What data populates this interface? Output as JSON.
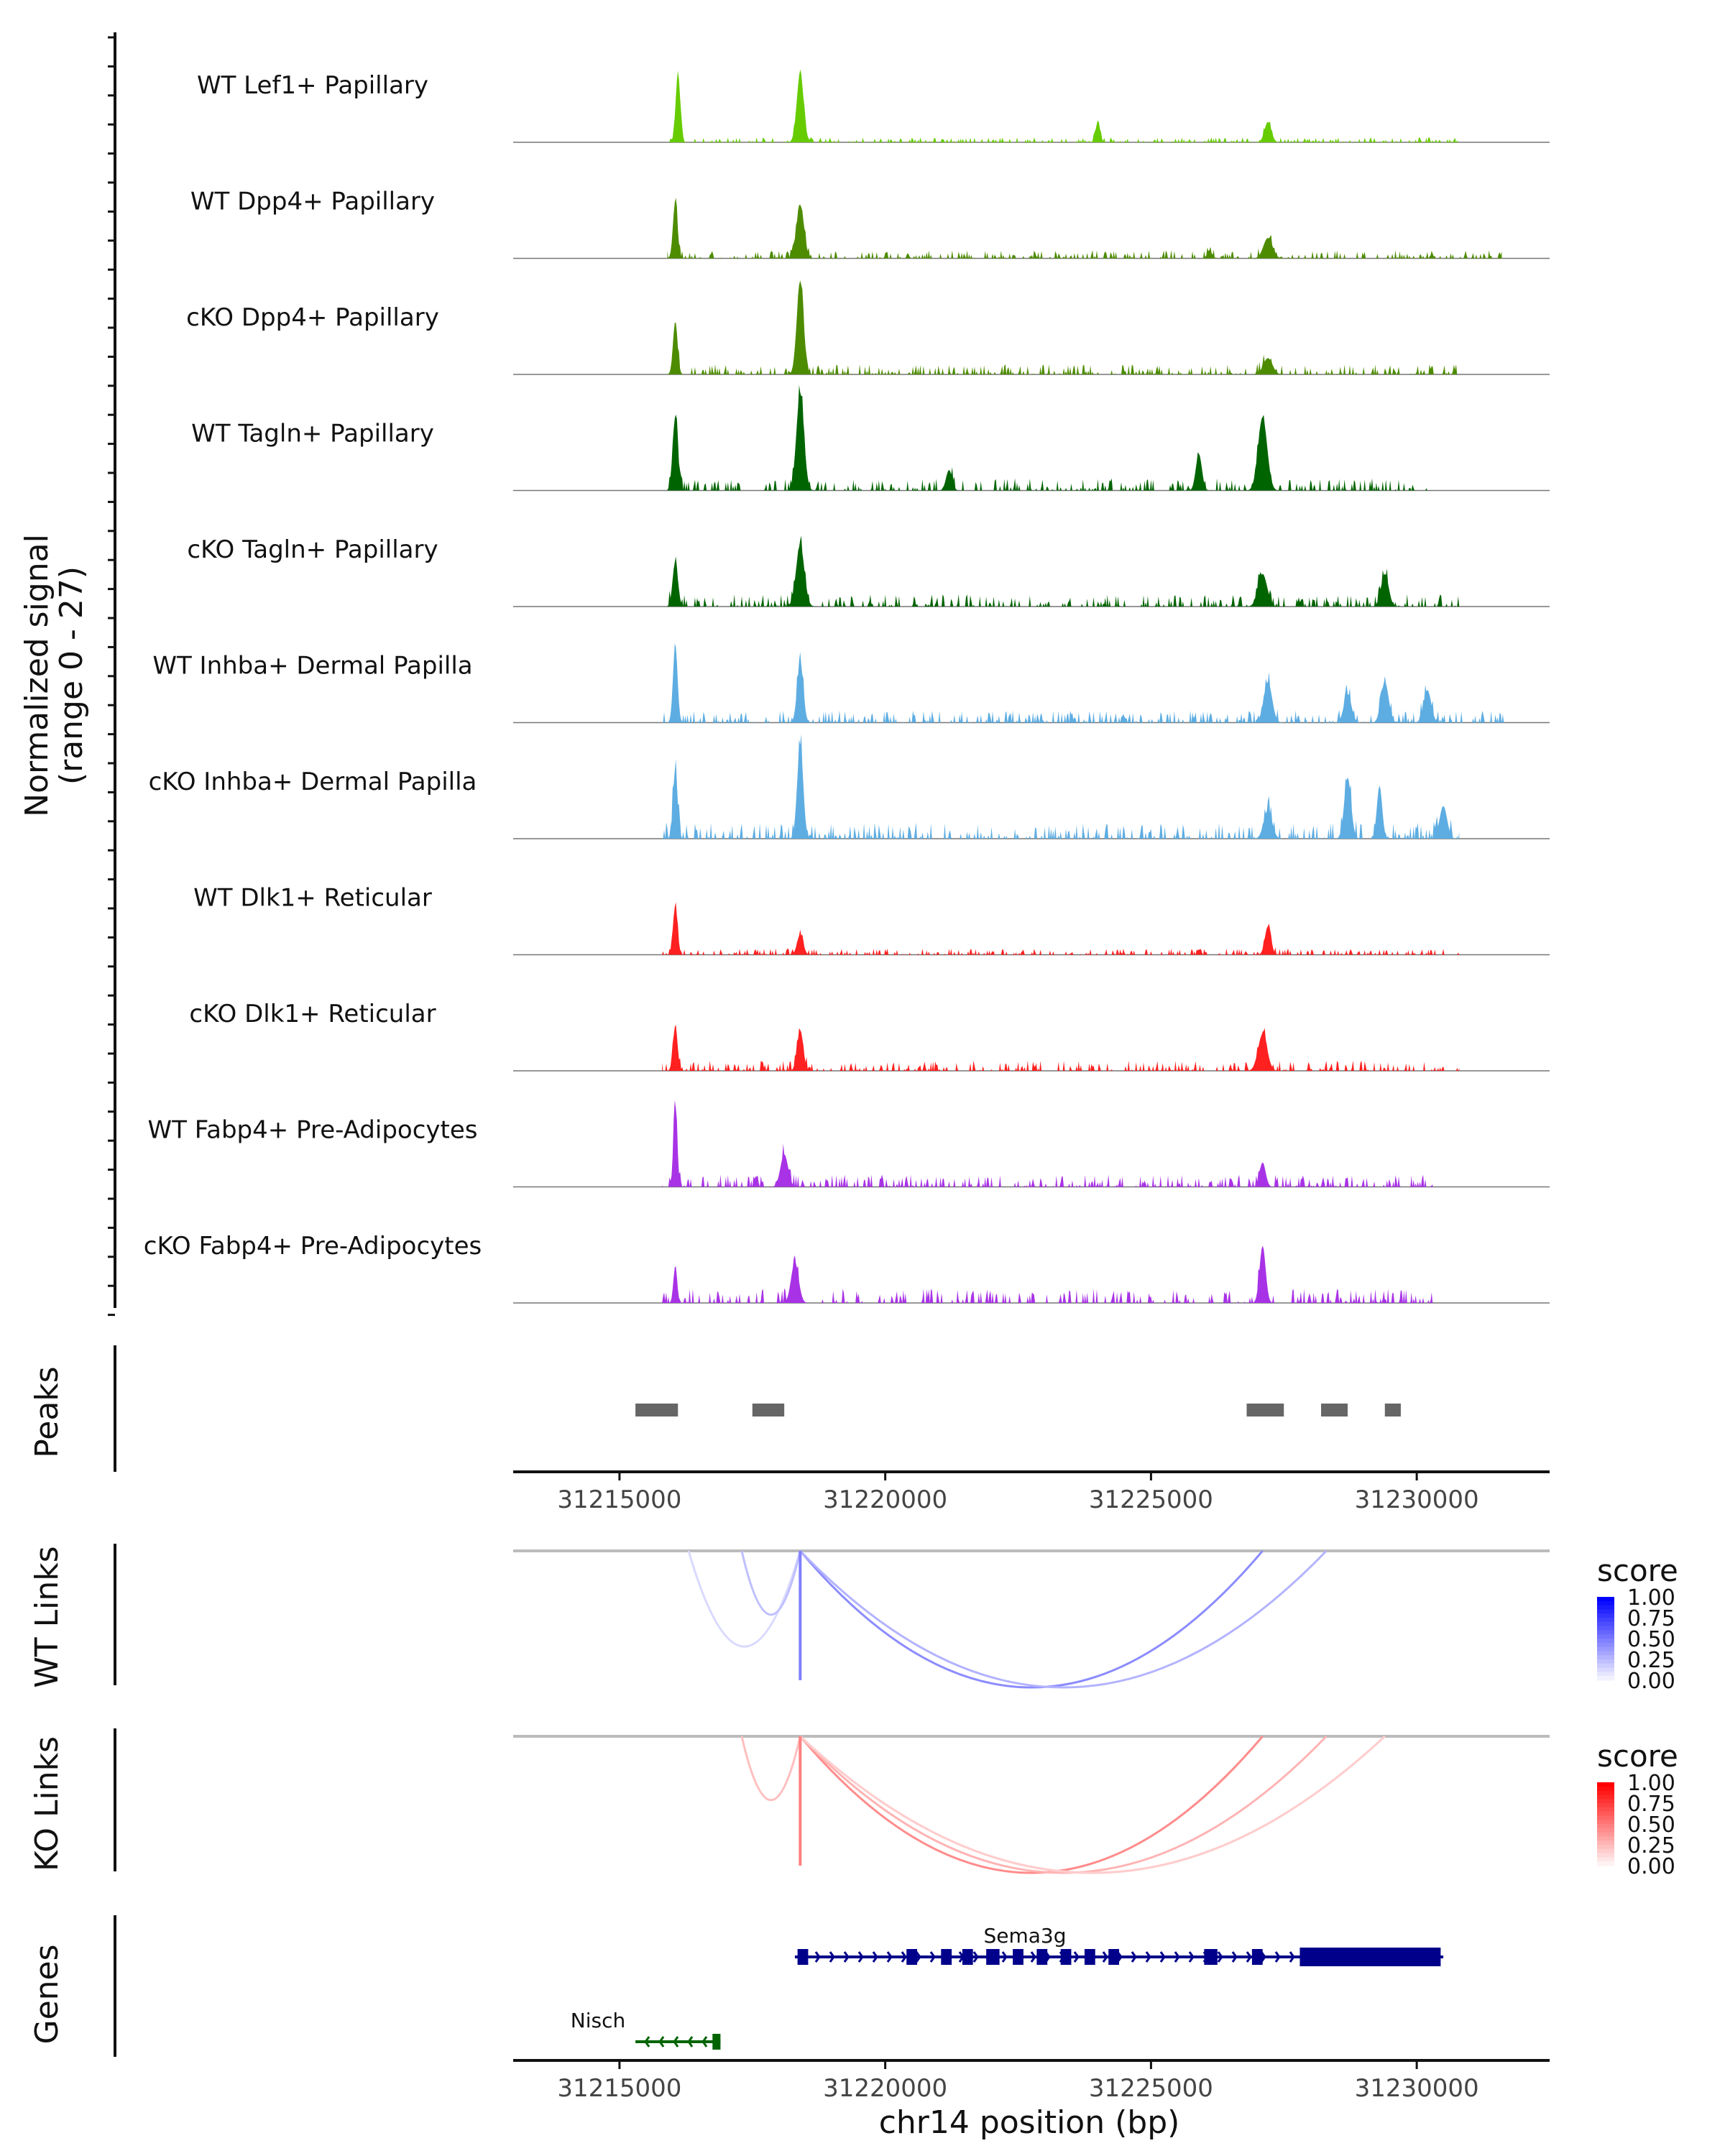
{
  "chart_data": {
    "type": "area",
    "title": "",
    "xlabel": "chr14 position (bp)",
    "xlim": [
      31213000,
      31232500
    ],
    "x_ticks": [
      31215000,
      31220000,
      31225000,
      31230000
    ],
    "x_tick_labels": [
      "31215000",
      "31220000",
      "31225000",
      "31230000"
    ],
    "coverage": {
      "ylabel": "Normalized signal\n(range 0 - 27)",
      "ylabel_line1": "Normalized signal",
      "ylabel_line2": "(range 0 - 27)",
      "ylim": [
        0,
        27
      ],
      "tracks": [
        {
          "name": "WT Lef1+ Papillary",
          "color": "#66CC00",
          "seed": 11,
          "peaks": [
            [
              31216100,
              17,
              60
            ],
            [
              31218400,
              17,
              90
            ],
            [
              31224000,
              5,
              60
            ],
            [
              31237200,
              0,
              0
            ],
            [
              31227200,
              5,
              90
            ]
          ],
          "noise": 1.2,
          "extent": [
            31215900,
            31230800
          ]
        },
        {
          "name": "WT Dpp4+ Papillary",
          "color": "#4D8C00",
          "seed": 23,
          "peaks": [
            [
              31216050,
              14,
              60
            ],
            [
              31218400,
              13,
              100
            ],
            [
              31226100,
              2,
              60
            ],
            [
              31227200,
              5,
              120
            ]
          ],
          "noise": 2.0,
          "extent": [
            31215900,
            31231600
          ]
        },
        {
          "name": "cKO Dpp4+ Papillary",
          "color": "#4D8C00",
          "seed": 37,
          "peaks": [
            [
              31216050,
              13,
              60
            ],
            [
              31218400,
              23,
              90
            ],
            [
              31227200,
              4,
              120
            ]
          ],
          "noise": 2.5,
          "extent": [
            31215900,
            31230800
          ]
        },
        {
          "name": "WT Tagln+ Papillary",
          "color": "#006400",
          "seed": 41,
          "peaks": [
            [
              31216050,
              18,
              70
            ],
            [
              31218400,
              24,
              100
            ],
            [
              31221200,
              5,
              80
            ],
            [
              31225900,
              9,
              80
            ],
            [
              31227100,
              18,
              120
            ]
          ],
          "noise": 3.0,
          "extent": [
            31215900,
            31230200
          ]
        },
        {
          "name": "cKO Tagln+ Papillary",
          "color": "#006400",
          "seed": 53,
          "peaks": [
            [
              31216050,
              11,
              70
            ],
            [
              31218400,
              15,
              110
            ],
            [
              31227100,
              8,
              120
            ],
            [
              31229400,
              8,
              100
            ]
          ],
          "noise": 3.0,
          "extent": [
            31215900,
            31230800
          ]
        },
        {
          "name": "WT Inhba+ Dermal Papilla",
          "color": "#5DADE2",
          "seed": 61,
          "peaks": [
            [
              31216050,
              19,
              60
            ],
            [
              31218400,
              15,
              80
            ],
            [
              31227200,
              10,
              110
            ],
            [
              31228700,
              7,
              100
            ],
            [
              31229400,
              10,
              100
            ],
            [
              31230200,
              8,
              100
            ]
          ],
          "noise": 3.0,
          "extent": [
            31215800,
            31231700
          ]
        },
        {
          "name": "cKO Inhba+ Dermal Papilla",
          "color": "#5DADE2",
          "seed": 71,
          "peaks": [
            [
              31216050,
              17,
              60
            ],
            [
              31218400,
              23,
              80
            ],
            [
              31227200,
              7,
              110
            ],
            [
              31228700,
              15,
              90
            ],
            [
              31229300,
              13,
              70
            ],
            [
              31230500,
              8,
              100
            ]
          ],
          "noise": 4.0,
          "extent": [
            31215800,
            31230800
          ]
        },
        {
          "name": "WT Dlk1+ Reticular",
          "color": "#FF2020",
          "seed": 83,
          "peaks": [
            [
              31216050,
              12,
              60
            ],
            [
              31218400,
              5,
              80
            ],
            [
              31227200,
              7,
              80
            ]
          ],
          "noise": 1.5,
          "extent": [
            31215800,
            31230800
          ]
        },
        {
          "name": "cKO Dlk1+ Reticular",
          "color": "#FF2020",
          "seed": 97,
          "peaks": [
            [
              31216050,
              11,
              60
            ],
            [
              31218400,
              10,
              80
            ],
            [
              31227100,
              9,
              120
            ]
          ],
          "noise": 2.5,
          "extent": [
            31215800,
            31230800
          ]
        },
        {
          "name": "WT Fabp4+ Pre-Adipocytes",
          "color": "#A832E6",
          "seed": 101,
          "peaks": [
            [
              31216050,
              20,
              50
            ],
            [
              31218100,
              8,
              100
            ],
            [
              31227100,
              6,
              80
            ],
            [
              31230400,
              3,
              80
            ]
          ],
          "noise": 3.0,
          "extent": [
            31215800,
            31230300
          ]
        },
        {
          "name": "cKO Fabp4+ Pre-Adipocytes",
          "color": "#A832E6",
          "seed": 113,
          "peaks": [
            [
              31216050,
              9,
              50
            ],
            [
              31218300,
              10,
              100
            ],
            [
              31227100,
              14,
              80
            ]
          ],
          "noise": 3.5,
          "extent": [
            31215800,
            31230300
          ]
        }
      ]
    },
    "peaks": {
      "label": "Peaks",
      "regions": [
        [
          31215300,
          31216100
        ],
        [
          31217500,
          31218100
        ],
        [
          31226800,
          31227500
        ],
        [
          31228200,
          31228700
        ],
        [
          31229400,
          31229700
        ]
      ]
    },
    "links": [
      {
        "label": "WT Links",
        "legend_title": "score",
        "color_low": "#FFFFFF",
        "color_high": "#0000FF",
        "legend_ticks": [
          "1.00",
          "0.75",
          "0.50",
          "0.25",
          "0.00"
        ],
        "arcs": [
          {
            "from": 31216300,
            "to": 31218400,
            "score": 0.15
          },
          {
            "from": 31217300,
            "to": 31218400,
            "score": 0.25
          },
          {
            "from": 31218400,
            "to": 31227100,
            "score": 0.45
          },
          {
            "from": 31218400,
            "to": 31228300,
            "score": 0.3
          },
          {
            "from": 31218400,
            "to": 31218400,
            "score": 0.5
          }
        ]
      },
      {
        "label": "KO Links",
        "legend_title": "score",
        "color_low": "#FFFFFF",
        "color_high": "#FF0000",
        "legend_ticks": [
          "1.00",
          "0.75",
          "0.50",
          "0.25",
          "0.00"
        ],
        "arcs": [
          {
            "from": 31217300,
            "to": 31218400,
            "score": 0.25
          },
          {
            "from": 31218400,
            "to": 31227100,
            "score": 0.45
          },
          {
            "from": 31218400,
            "to": 31228300,
            "score": 0.3
          },
          {
            "from": 31218400,
            "to": 31229400,
            "score": 0.2
          },
          {
            "from": 31218400,
            "to": 31218400,
            "score": 0.5
          }
        ]
      }
    ],
    "genes": {
      "label": "Genes",
      "items": [
        {
          "name": "Sema3g",
          "strand": "+",
          "color": "#00008B",
          "start": 31218300,
          "end": 31230500,
          "exons": [
            [
              31218350,
              31218550
            ],
            [
              31220400,
              31220600
            ],
            [
              31221050,
              31221250
            ],
            [
              31221450,
              31221650
            ],
            [
              31221900,
              31222150
            ],
            [
              31222400,
              31222600
            ],
            [
              31222850,
              31223050
            ],
            [
              31223300,
              31223500
            ],
            [
              31223750,
              31223950
            ],
            [
              31224200,
              31224400
            ],
            [
              31226000,
              31226250
            ],
            [
              31226900,
              31227100
            ],
            [
              31227800,
              31230450
            ]
          ],
          "thick_exons": [
            [
              31227800,
              31230450
            ]
          ]
        },
        {
          "name": "Nisch",
          "strand": "-",
          "color": "#006400",
          "start": 31215300,
          "end": 31216900,
          "exons": [
            [
              31216750,
              31216900
            ]
          ],
          "thick_exons": []
        }
      ]
    }
  }
}
